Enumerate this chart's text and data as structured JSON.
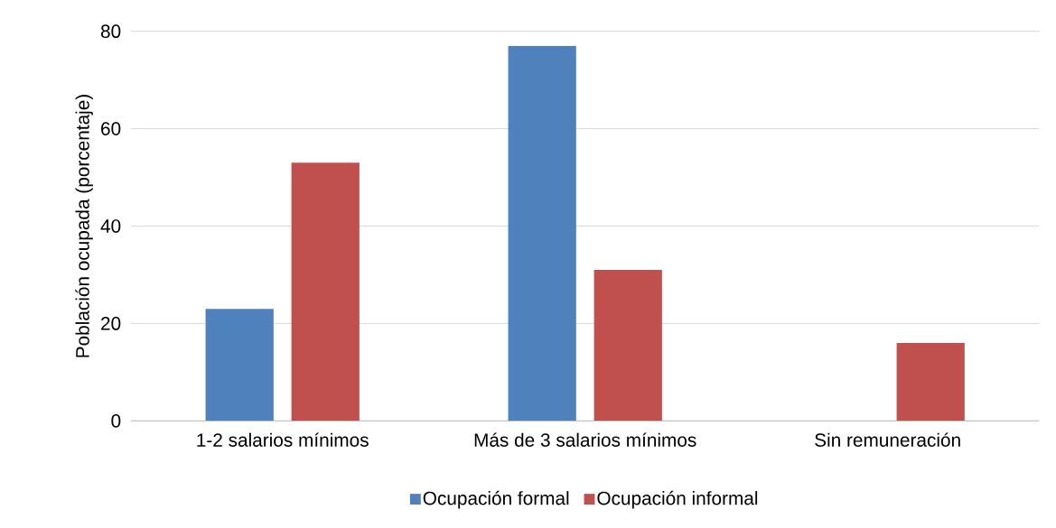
{
  "chart_data": {
    "type": "bar",
    "ylabel": "Población ocupada (porcentaje)",
    "categories": [
      "1-2 salarios mínimos",
      "Más de 3 salarios mínimos",
      "Sin remuneración"
    ],
    "series": [
      {
        "name": "Ocupación formal",
        "color": "#4f81bd",
        "values": [
          23,
          77,
          0
        ]
      },
      {
        "name": "Ocupación informal",
        "color": "#c0504d",
        "values": [
          53,
          31,
          16
        ]
      }
    ],
    "ylim": [
      0,
      80
    ],
    "yticks": [
      0,
      20,
      40,
      60,
      80
    ],
    "grid": "y",
    "legend": "bottom"
  }
}
